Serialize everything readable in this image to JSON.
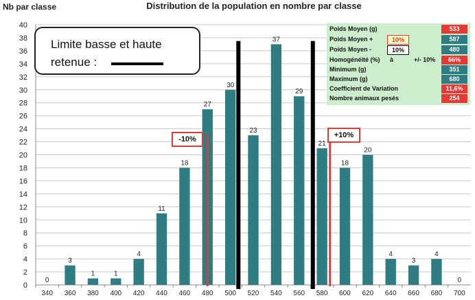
{
  "y_axis_title": "Nb par classe",
  "chart_title": "Distribution de la population en nombre par classe",
  "legend": {
    "line1": "Limite basse et haute",
    "line2": "retenue :"
  },
  "limit_labels": {
    "low": "-10%",
    "high": "+10%"
  },
  "stats": {
    "rows": [
      {
        "label": "Poids Moyen (g)",
        "value": "533",
        "color": "#e53935"
      },
      {
        "label": "Poids Moyen +",
        "mid": "10%",
        "mid_highlight": true,
        "value": "587",
        "color": "#2f7d82"
      },
      {
        "label": "Poids Moyen -",
        "mid": "10%",
        "mid_highlight": false,
        "value": "480",
        "color": "#2f7d82"
      },
      {
        "label": "Homogénéité (%)",
        "mid_text": "à",
        "right_text": "+/- 10%",
        "value": "66%",
        "color": "#e53935"
      },
      {
        "label": "Minimum (g)",
        "value": "351",
        "color": "#2f7d82"
      },
      {
        "label": "Maximum (g)",
        "value": "680",
        "color": "#2f7d82"
      },
      {
        "label": "Coefficient de Variation",
        "value": "11,6%",
        "color": "#e53935"
      },
      {
        "label": "Nombre animaux pesés",
        "value": "254",
        "color": "#e53935"
      }
    ]
  },
  "chart_data": {
    "type": "bar",
    "categories": [
      "340",
      "360",
      "380",
      "400",
      "420",
      "440",
      "460",
      "480",
      "500",
      "520",
      "540",
      "560",
      "580",
      "600",
      "620",
      "640",
      "660",
      "680",
      "700"
    ],
    "values": [
      0,
      3,
      1,
      1,
      4,
      11,
      18,
      27,
      30,
      23,
      37,
      29,
      21,
      18,
      20,
      4,
      3,
      4,
      0
    ],
    "title": "Distribution de la population en nombre par classe",
    "ylabel": "Nb par classe",
    "xlabel": "",
    "ylim": [
      0,
      40
    ],
    "yticks": [
      0,
      2,
      4,
      6,
      8,
      10,
      12,
      14,
      16,
      18,
      20,
      22,
      24,
      26,
      28,
      30,
      32,
      34,
      36,
      38,
      40
    ],
    "grid": true,
    "bar_color": "#2f7d82",
    "limit_lines_black": [
      507,
      572
    ],
    "limit_lines_red": [
      480,
      587
    ]
  }
}
